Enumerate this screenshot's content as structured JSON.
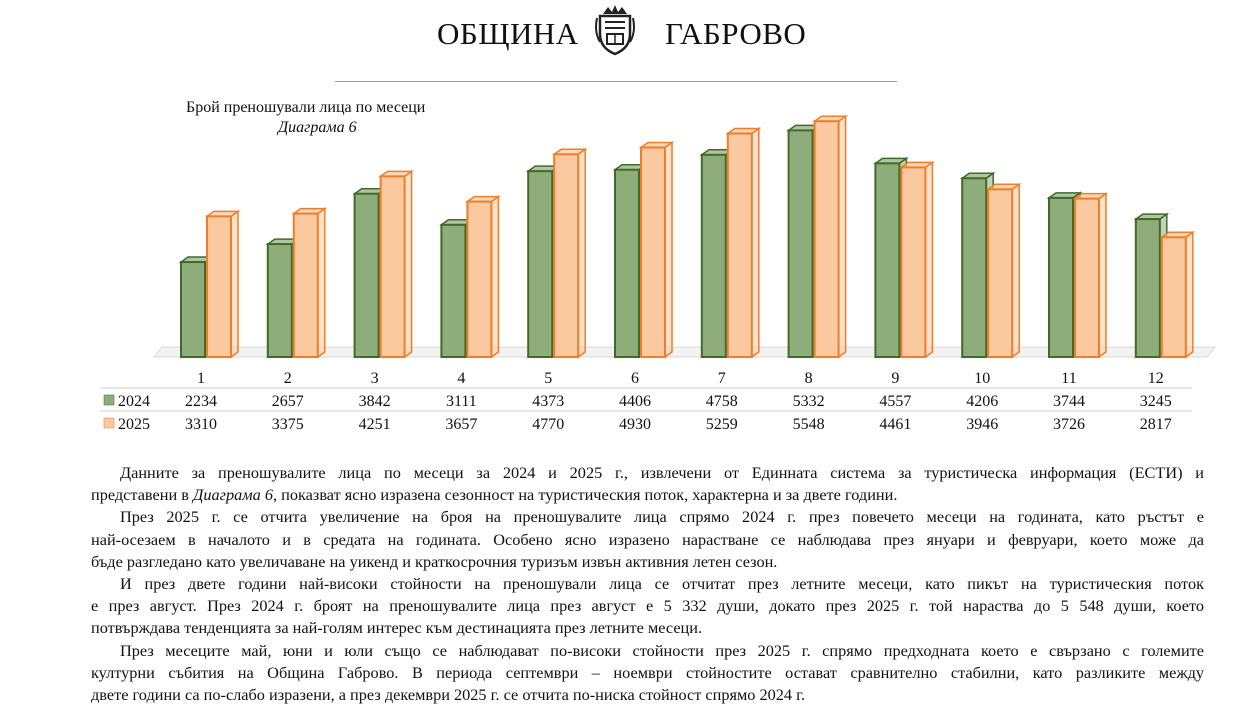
{
  "header": {
    "left": "ОБЩИНА",
    "right": "ГАБРОВО"
  },
  "chart_data": {
    "type": "bar",
    "title": "Брой преношували лица по месеци",
    "subtitle": "Диаграма 6",
    "categories": [
      "1",
      "2",
      "3",
      "4",
      "5",
      "6",
      "7",
      "8",
      "9",
      "10",
      "11",
      "12"
    ],
    "series": [
      {
        "name": "2024",
        "values": [
          2234,
          2657,
          3842,
          3111,
          4373,
          4406,
          4758,
          5332,
          4557,
          4206,
          3744,
          3245
        ],
        "color": "#8fad7a",
        "edge": "#3f6b2a"
      },
      {
        "name": "2025",
        "values": [
          3310,
          3375,
          4251,
          3657,
          4770,
          4930,
          5259,
          5548,
          4461,
          3946,
          3726,
          2817
        ],
        "color": "#fac9a0",
        "edge": "#f07d28"
      }
    ],
    "table_labels": [
      [
        "2234",
        "2657",
        "3842",
        "3111",
        "4373",
        "4406",
        "4758",
        "5332",
        "4557",
        "4206",
        "3744",
        "3245"
      ],
      [
        "3310",
        "3375",
        "4251",
        "3657",
        "4770",
        "4930",
        "5259",
        "5548",
        "4461",
        "3946",
        "3726",
        "2817"
      ]
    ],
    "ylim": [
      0,
      6000
    ]
  },
  "text": {
    "p1_l1": "Данните за преношувалите лица по месеци за 2024 и 2025 г., извлечени от Единната система за туристическа информация (ЕСТИ) и",
    "p1_l2a": "представени в ",
    "p1_l2em": "Диаграма 6",
    "p1_l2b": ", показват ясно изразена сезонност на туристическия поток, характерна и за двете години.",
    "p2_l1": "През 2025 г. се отчита увеличение на броя на преношувалите лица спрямо 2024 г. през повечето месеци на годината, като ръстът е",
    "p2_l2": "най-осезаем в началото и в средата на годината. Особено ясно изразено нарастване се наблюдава през януари и февруари, което може да",
    "p2_l3": "бъде разгледано като увеличаване на уикенд и краткосрочния туризъм извън активния летен сезон.",
    "p3_l1": "И през двете години най-високи стойности на преношували лица се отчитат през летните месеци, като пикът на туристическия поток",
    "p3_l2": "е през август. През 2024 г. броят на преношувалите лица през август е 5 332 души, докато през 2025 г. той нараства до 5 548 души, което",
    "p3_l3": "потвърждава тенденцията за най-голям интерес към дестинацията през летните месеци.",
    "p4_l1": "През месеците май, юни и юли също се наблюдават по-високи стойности през 2025 г. спрямо предходната което е свързано с големите",
    "p4_l2": "културни събития на Община Габрово. В периода септември – ноември стойностите остават сравнително стабилни, като разликите между",
    "p4_l3": "двете години са по-слабо изразени, а през декември 2025 г. се отчита по-ниска стойност спрямо 2024 г."
  }
}
